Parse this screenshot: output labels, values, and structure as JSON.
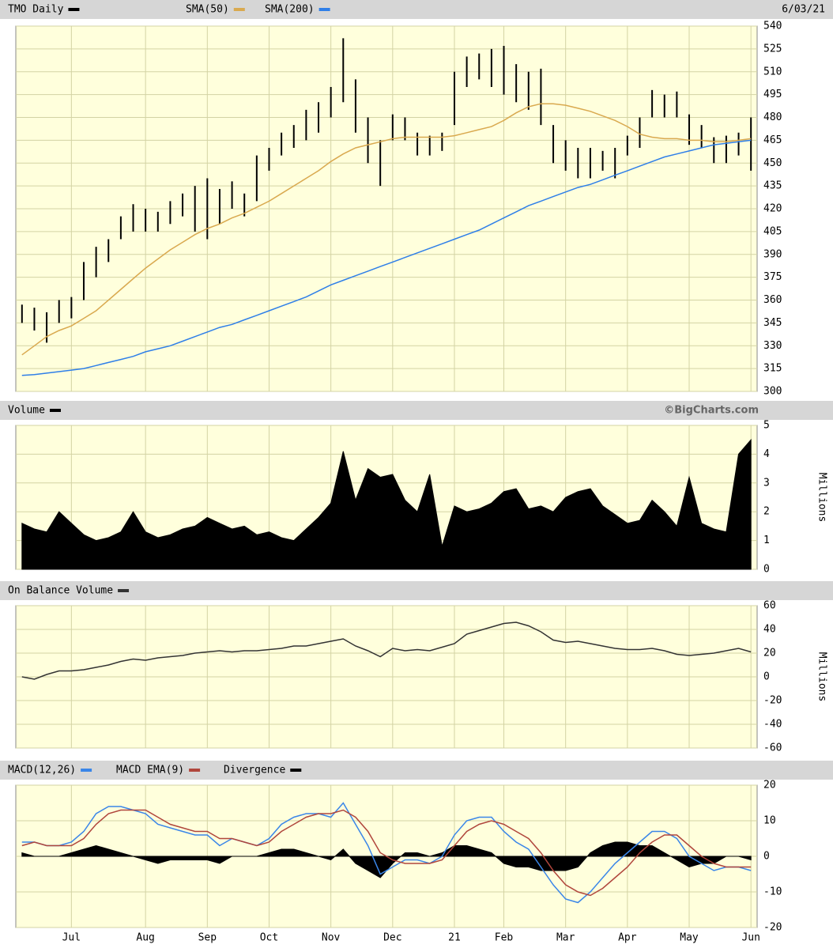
{
  "chart_data": [
    {
      "type": "ohlc",
      "date": "6/03/21",
      "series": [
        {
          "name": "TMO Daily",
          "color": "#000000",
          "type": "ohlc",
          "high": [
            357,
            355,
            352,
            360,
            362,
            385,
            395,
            400,
            415,
            423,
            420,
            418,
            425,
            430,
            435,
            440,
            433,
            438,
            430,
            455,
            460,
            470,
            475,
            485,
            490,
            500,
            532,
            505,
            480,
            465,
            482,
            480,
            470,
            468,
            470,
            510,
            520,
            522,
            525,
            527,
            515,
            510,
            512,
            475,
            465,
            460,
            460,
            458,
            460,
            468,
            480,
            498,
            495,
            497,
            482,
            475,
            467,
            468,
            470,
            480
          ],
          "low": [
            345,
            340,
            332,
            345,
            348,
            360,
            375,
            385,
            400,
            405,
            405,
            405,
            410,
            415,
            405,
            400,
            410,
            420,
            415,
            425,
            445,
            455,
            460,
            465,
            470,
            480,
            490,
            470,
            450,
            435,
            465,
            465,
            455,
            455,
            458,
            475,
            500,
            505,
            500,
            495,
            490,
            485,
            475,
            450,
            445,
            440,
            440,
            445,
            440,
            455,
            460,
            480,
            480,
            480,
            462,
            460,
            450,
            450,
            455,
            445
          ]
        },
        {
          "name": "SMA(50)",
          "color": "#d9a94f",
          "type": "line",
          "values": [
            324,
            330,
            336,
            340,
            343,
            348,
            353,
            360,
            367,
            374,
            381,
            387,
            393,
            398,
            403,
            407,
            410,
            414,
            417,
            421,
            425,
            430,
            435,
            440,
            445,
            451,
            456,
            460,
            462,
            464,
            466,
            467,
            467,
            467,
            467,
            468,
            470,
            472,
            474,
            478,
            483,
            487,
            489,
            489,
            488,
            486,
            484,
            481,
            478,
            474,
            469,
            467,
            466,
            466,
            465,
            465,
            464,
            464,
            465,
            466
          ]
        },
        {
          "name": "SMA(200)",
          "color": "#2f7fe8",
          "type": "line",
          "values": [
            310.5,
            311,
            312,
            313,
            314,
            315,
            317,
            319,
            321,
            323,
            326,
            328,
            330,
            333,
            336,
            339,
            342,
            344,
            347,
            350,
            353,
            356,
            359,
            362,
            366,
            370,
            373,
            376,
            379,
            382,
            385,
            388,
            391,
            394,
            397,
            400,
            403,
            406,
            410,
            414,
            418,
            422,
            425,
            428,
            431,
            434,
            436,
            439,
            442,
            445,
            448,
            451,
            454,
            456,
            458,
            460,
            462,
            463,
            464,
            465
          ]
        }
      ],
      "ylim": [
        300,
        540
      ],
      "yticks": [
        300,
        315,
        330,
        345,
        360,
        375,
        390,
        405,
        420,
        435,
        450,
        465,
        480,
        495,
        510,
        525,
        540
      ],
      "grid": true
    },
    {
      "type": "area",
      "credit": "©BigCharts.com",
      "y_label": "Millions",
      "series": [
        {
          "name": "Volume",
          "color": "#000000",
          "type": "area",
          "values": [
            1.6,
            1.4,
            1.3,
            2.0,
            1.6,
            1.2,
            1.0,
            1.1,
            1.3,
            2.0,
            1.3,
            1.1,
            1.2,
            1.4,
            1.5,
            1.8,
            1.6,
            1.4,
            1.5,
            1.2,
            1.3,
            1.1,
            1.0,
            1.4,
            1.8,
            2.3,
            4.1,
            2.4,
            3.5,
            3.2,
            3.3,
            2.4,
            2.0,
            3.3,
            0.8,
            2.2,
            2.0,
            2.1,
            2.3,
            2.7,
            2.8,
            2.1,
            2.2,
            2.0,
            2.5,
            2.7,
            2.8,
            2.2,
            1.9,
            1.6,
            1.7,
            2.4,
            2.0,
            1.5,
            3.2,
            1.6,
            1.4,
            1.3,
            4.0,
            4.5
          ]
        }
      ],
      "ylim": [
        0,
        5
      ],
      "yticks": [
        0,
        1,
        2,
        3,
        4,
        5
      ],
      "grid": true
    },
    {
      "type": "line",
      "y_label": "Millions",
      "series": [
        {
          "name": "On Balance Volume",
          "color": "#333333",
          "type": "line",
          "values": [
            0,
            -2,
            2,
            5,
            5,
            6,
            8,
            10,
            13,
            15,
            14,
            16,
            17,
            18,
            20,
            21,
            22,
            21,
            22,
            22,
            23,
            24,
            26,
            26,
            28,
            30,
            32,
            26,
            22,
            17,
            24,
            22,
            23,
            22,
            25,
            28,
            36,
            39,
            42,
            45,
            46,
            43,
            38,
            31,
            29,
            30,
            28,
            26,
            24,
            23,
            23,
            24,
            22,
            19,
            18,
            19,
            20,
            22,
            24,
            21
          ]
        }
      ],
      "ylim": [
        -60,
        60
      ],
      "yticks": [
        -60,
        -40,
        -20,
        0,
        20,
        40,
        60
      ],
      "grid": true
    },
    {
      "type": "line",
      "categories": [
        null,
        null,
        null,
        null,
        "Jul",
        null,
        null,
        null,
        null,
        null,
        "Aug",
        null,
        null,
        null,
        null,
        "Sep",
        null,
        null,
        null,
        null,
        "Oct",
        null,
        null,
        null,
        null,
        "Nov",
        null,
        null,
        null,
        null,
        "Dec",
        null,
        null,
        null,
        null,
        "21",
        null,
        null,
        null,
        "Feb",
        null,
        null,
        null,
        null,
        "Mar",
        null,
        null,
        null,
        null,
        "Apr",
        null,
        null,
        null,
        null,
        "May",
        null,
        null,
        null,
        null,
        "Jun"
      ],
      "series": [
        {
          "name": "MACD(12,26)",
          "color": "#3a86e8",
          "type": "line",
          "values": [
            4,
            4,
            3,
            3,
            4,
            7,
            12,
            14,
            14,
            13,
            12,
            9,
            8,
            7,
            6,
            6,
            3,
            5,
            4,
            3,
            5,
            9,
            11,
            12,
            12,
            11,
            15,
            9,
            3,
            -5,
            -3,
            -1,
            -1,
            -2,
            0,
            6,
            10,
            11,
            11,
            7,
            4,
            2,
            -3,
            -8,
            -12,
            -13,
            -10,
            -6,
            -2,
            1,
            4,
            7,
            7,
            5,
            0,
            -2,
            -4,
            -3,
            -3,
            -4
          ]
        },
        {
          "name": "MACD EMA(9)",
          "color": "#b0463c",
          "type": "line",
          "values": [
            3,
            4,
            3,
            3,
            3,
            5,
            9,
            12,
            13,
            13,
            13,
            11,
            9,
            8,
            7,
            7,
            5,
            5,
            4,
            3,
            4,
            7,
            9,
            11,
            12,
            12,
            13,
            11,
            7,
            1,
            -1,
            -2,
            -2,
            -2,
            -1,
            3,
            7,
            9,
            10,
            9,
            7,
            5,
            1,
            -4,
            -8,
            -10,
            -11,
            -9,
            -6,
            -3,
            1,
            4,
            6,
            6,
            3,
            0,
            -2,
            -3,
            -3,
            -3
          ]
        },
        {
          "name": "Divergence",
          "color": "#000000",
          "type": "area",
          "values": [
            1,
            0,
            0,
            0,
            1,
            2,
            3,
            2,
            1,
            0,
            -1,
            -2,
            -1,
            -1,
            -1,
            -1,
            -2,
            0,
            0,
            0,
            1,
            2,
            2,
            1,
            0,
            -1,
            2,
            -2,
            -4,
            -6,
            -2,
            1,
            1,
            0,
            1,
            3,
            3,
            2,
            1,
            -2,
            -3,
            -3,
            -4,
            -4,
            -4,
            -3,
            1,
            3,
            4,
            4,
            3,
            3,
            1,
            -1,
            -3,
            -2,
            -2,
            0,
            0,
            -1
          ]
        }
      ],
      "ylim": [
        -20,
        20
      ],
      "yticks": [
        -20,
        -10,
        0,
        10,
        20
      ],
      "grid": true
    }
  ]
}
